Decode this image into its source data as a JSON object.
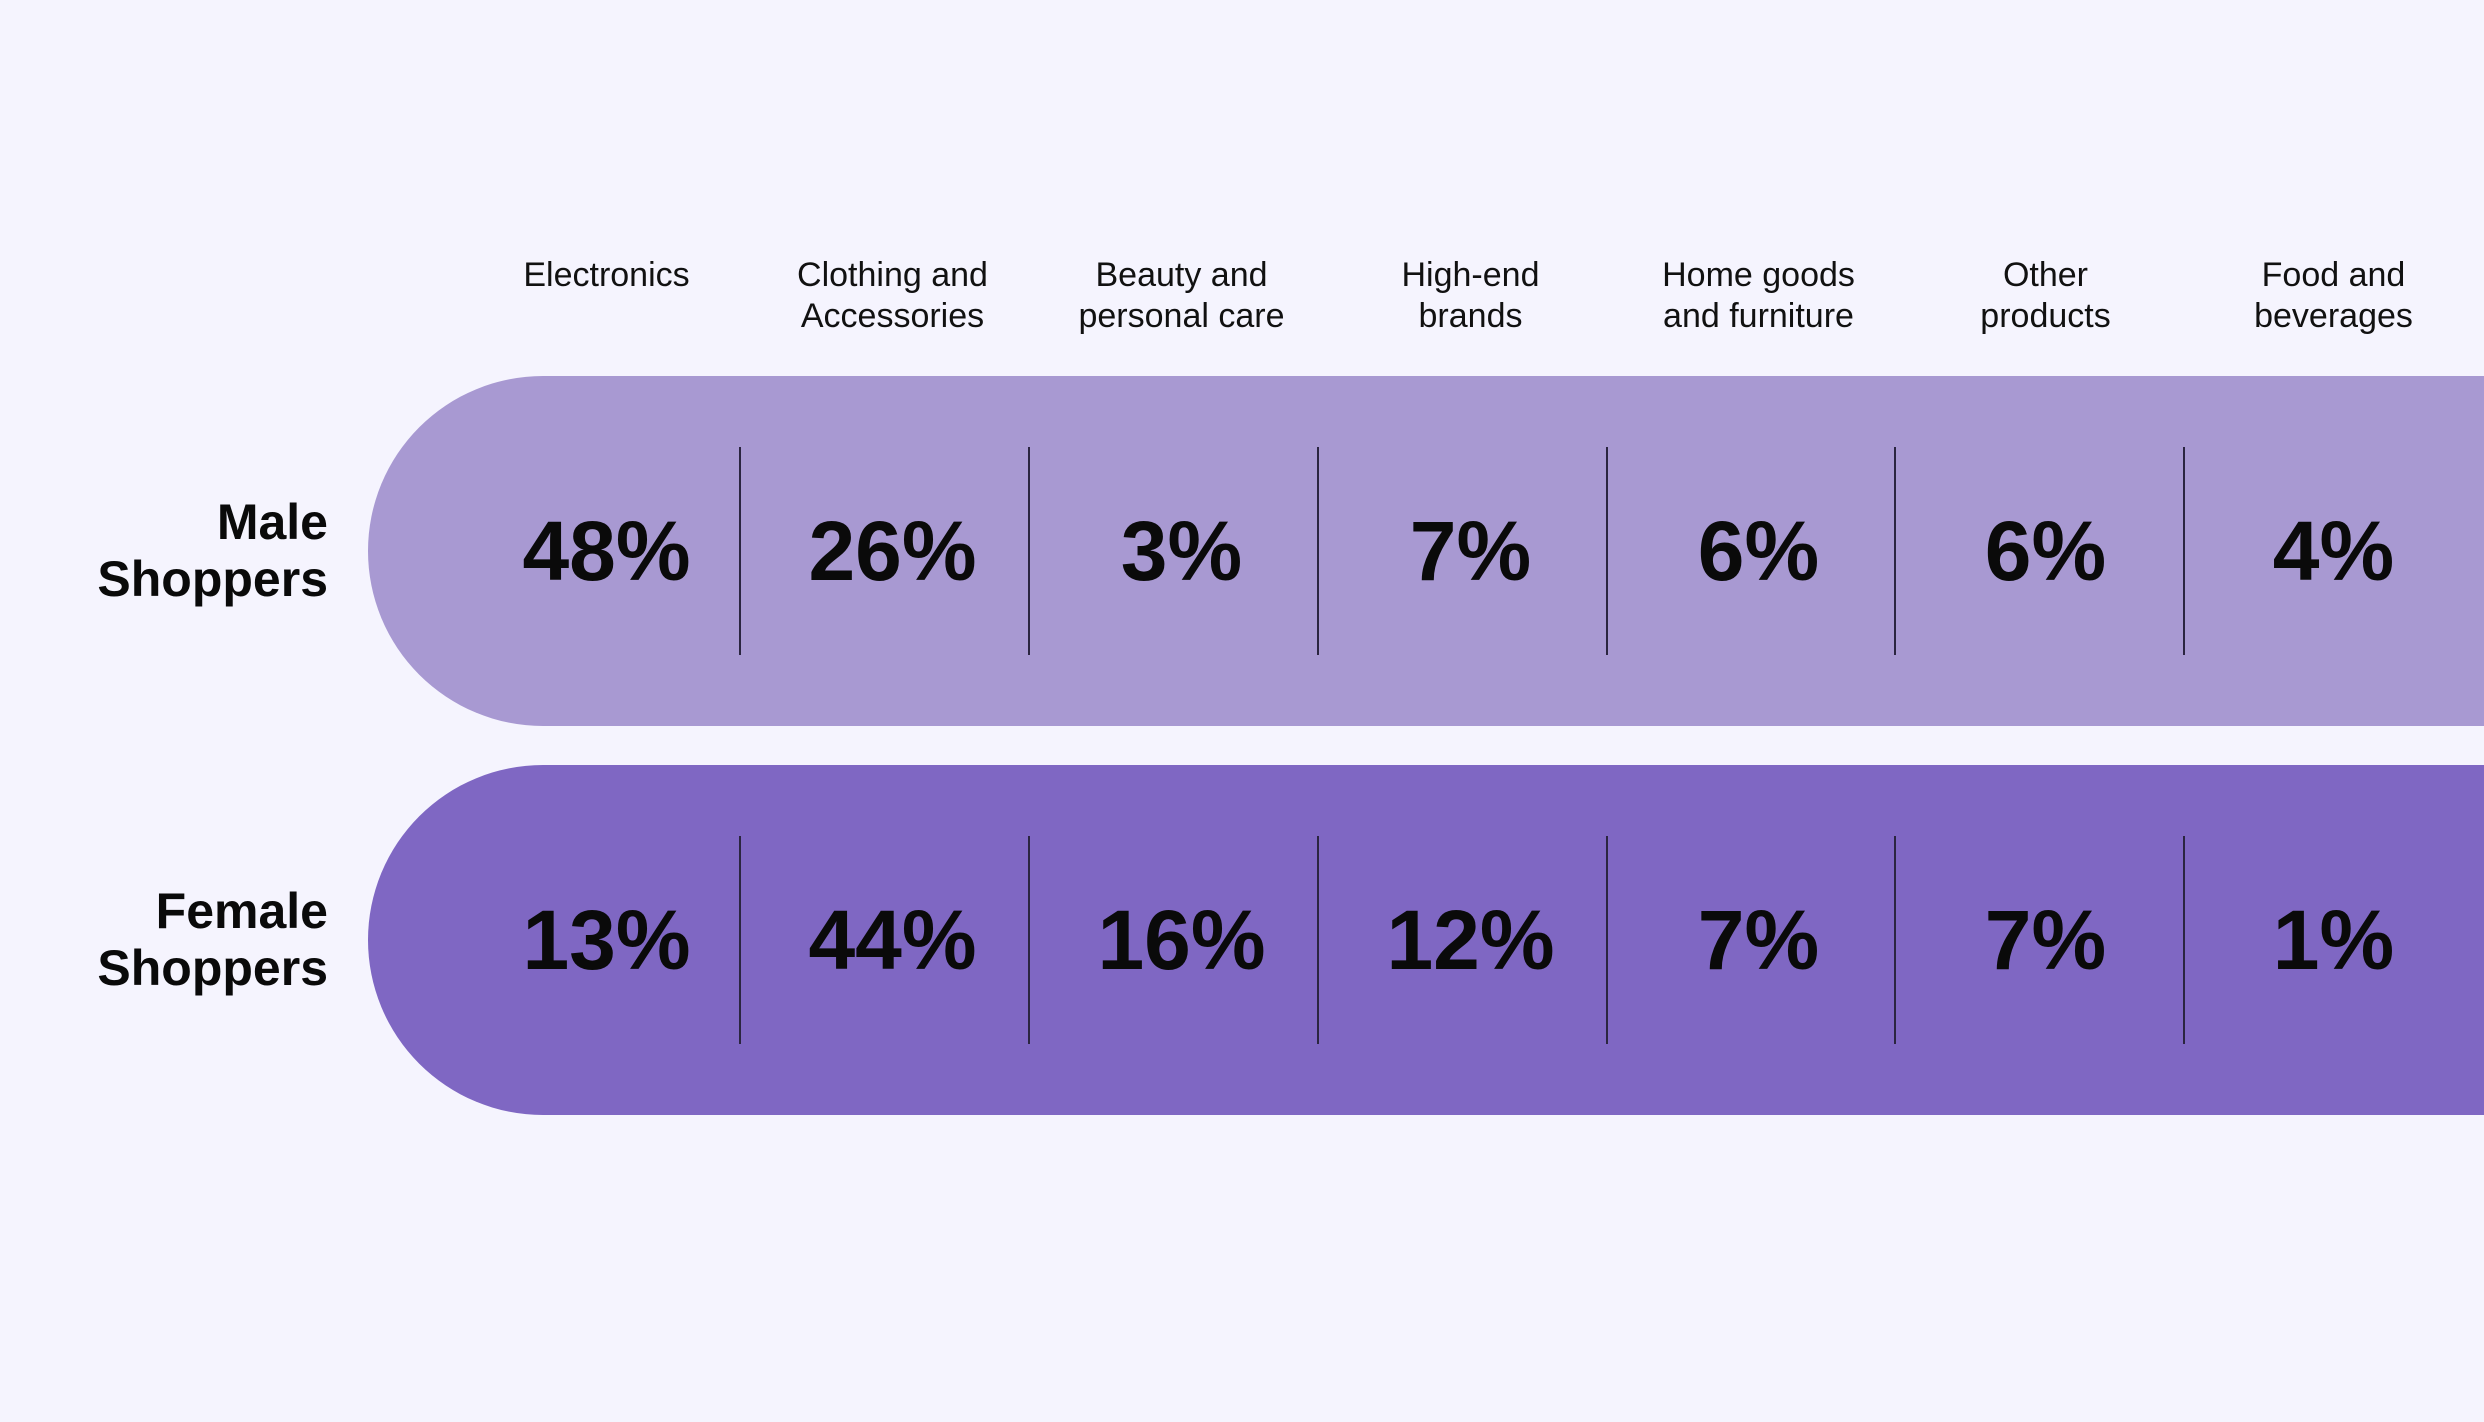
{
  "colors": {
    "background": "#f5f4fe",
    "male_band": "#a899d2",
    "female_band": "#7f67c3",
    "divider": "#2b2540",
    "text": "#0a0a0a"
  },
  "chart_data": {
    "type": "table",
    "title": "",
    "categories": [
      "Electronics",
      "Clothing and\nAccessories",
      "Beauty and\npersonal care",
      "High-end\nbrands",
      "Home goods\nand furniture",
      "Other\nproducts",
      "Food and\nbeverages"
    ],
    "series": [
      {
        "name": "Male\nShoppers",
        "values": [
          48,
          26,
          3,
          7,
          6,
          6,
          4
        ],
        "labels": [
          "48%",
          "26%",
          "3%",
          "7%",
          "6%",
          "6%",
          "4%"
        ]
      },
      {
        "name": "Female\nShoppers",
        "values": [
          13,
          44,
          16,
          12,
          7,
          7,
          1
        ],
        "labels": [
          "13%",
          "44%",
          "16%",
          "12%",
          "7%",
          "7%",
          "1%"
        ]
      }
    ],
    "unit": "%"
  }
}
